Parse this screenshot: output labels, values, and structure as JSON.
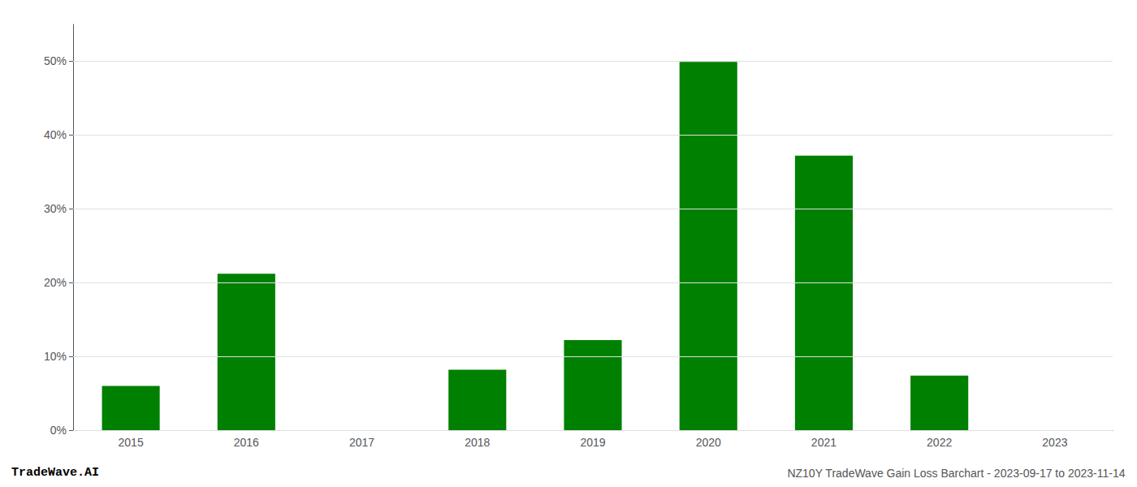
{
  "chart_data": {
    "type": "bar",
    "categories": [
      "2015",
      "2016",
      "2017",
      "2018",
      "2019",
      "2020",
      "2021",
      "2022",
      "2023"
    ],
    "values": [
      0.06,
      0.212,
      0.0,
      0.082,
      0.122,
      0.499,
      0.372,
      0.074,
      0.0
    ],
    "color": "#008000",
    "ylim": [
      0,
      0.55
    ],
    "yticks": [
      {
        "value": 0.0,
        "label": "0%"
      },
      {
        "value": 0.1,
        "label": "10%"
      },
      {
        "value": 0.2,
        "label": "20%"
      },
      {
        "value": 0.3,
        "label": "30%"
      },
      {
        "value": 0.4,
        "label": "40%"
      },
      {
        "value": 0.5,
        "label": "50%"
      }
    ],
    "grid": true,
    "annotations": [
      "TradeWave.AI",
      "NZ10Y TradeWave Gain Loss Barchart - 2023-09-17 to 2023-11-14"
    ]
  }
}
